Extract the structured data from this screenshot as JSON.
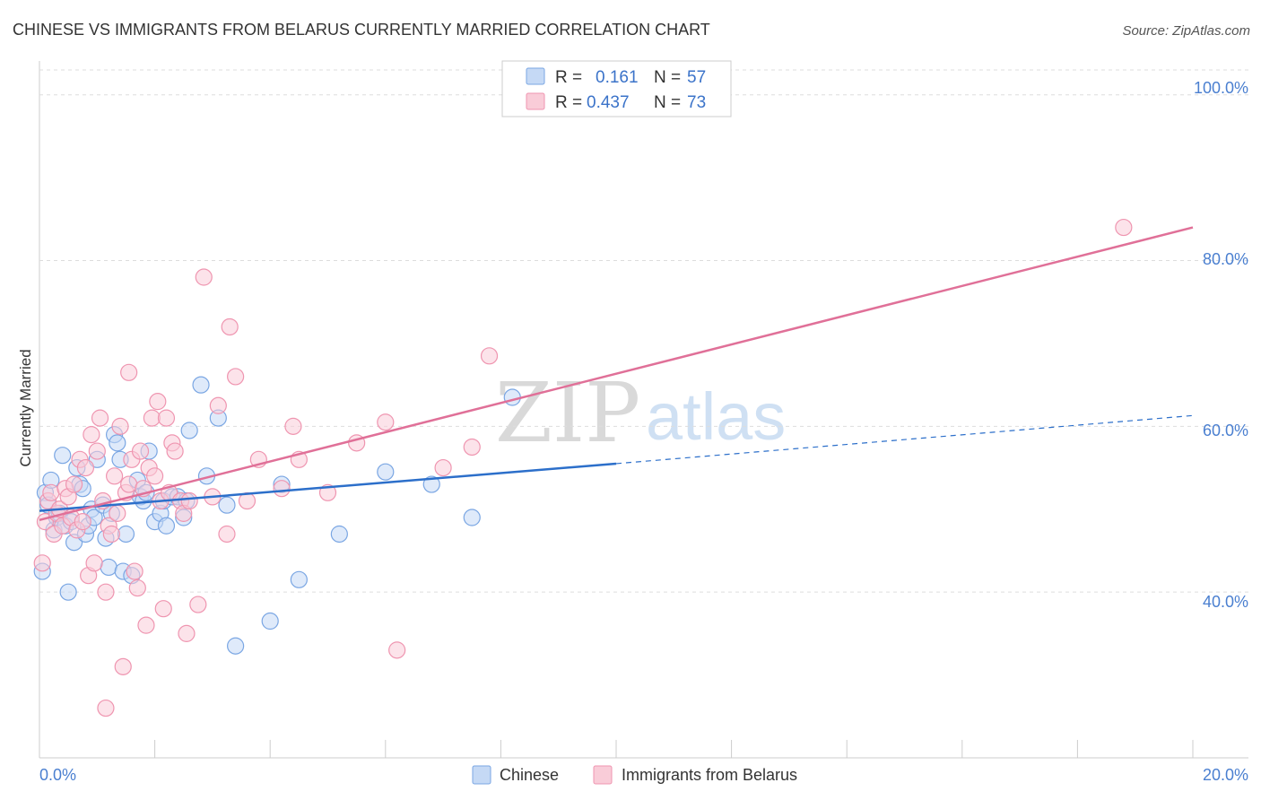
{
  "title": "CHINESE VS IMMIGRANTS FROM BELARUS CURRENTLY MARRIED CORRELATION CHART",
  "source": "Source: ZipAtlas.com",
  "watermark": {
    "part1": "ZIP",
    "part2": "atlas"
  },
  "legend": {
    "r_label": "R =",
    "n_label": "N =",
    "series": [
      {
        "r": "0.161",
        "n": "57"
      },
      {
        "r": "0.437",
        "n": "73"
      }
    ]
  },
  "bottom_legend": [
    "Chinese",
    "Immigrants from Belarus"
  ],
  "colors": {
    "blue_fill": "#c5d9f5",
    "blue_stroke": "#7aa6e3",
    "blue_line": "#2c6fca",
    "pink_fill": "#f9ccd8",
    "pink_stroke": "#ef95b0",
    "pink_line": "#e07098",
    "grid": "#dddddd",
    "axis": "#cccccc"
  },
  "chart_data": {
    "type": "scatter",
    "title": "CHINESE VS IMMIGRANTS FROM BELARUS CURRENTLY MARRIED CORRELATION CHART",
    "xlabel": "",
    "ylabel": "Currently Married",
    "xlim": [
      0,
      20
    ],
    "ylim": [
      20,
      103
    ],
    "x_tick_labels": [
      "0.0%",
      "20.0%"
    ],
    "y_ticks": [
      40,
      60,
      80,
      100
    ],
    "y_tick_labels": [
      "40.0%",
      "60.0%",
      "80.0%",
      "100.0%"
    ],
    "grid": true,
    "series": [
      {
        "name": "Chinese",
        "trend": {
          "x0": 0,
          "y0": 49.8,
          "x1": 10,
          "y1": 55.5,
          "dash_to_x": 20,
          "dash_to_y": 61.3
        },
        "points": [
          [
            0.05,
            42.5
          ],
          [
            0.1,
            52.0
          ],
          [
            0.15,
            50.5
          ],
          [
            0.2,
            53.5
          ],
          [
            0.25,
            47.5
          ],
          [
            0.3,
            49.0
          ],
          [
            0.35,
            49.5
          ],
          [
            0.4,
            56.5
          ],
          [
            0.45,
            48.0
          ],
          [
            0.5,
            40.0
          ],
          [
            0.55,
            48.5
          ],
          [
            0.6,
            46.0
          ],
          [
            0.65,
            55.0
          ],
          [
            0.7,
            53.0
          ],
          [
            0.75,
            52.5
          ],
          [
            0.8,
            47.0
          ],
          [
            0.85,
            48.0
          ],
          [
            0.9,
            50.0
          ],
          [
            0.95,
            49.0
          ],
          [
            1.0,
            56.0
          ],
          [
            1.1,
            50.5
          ],
          [
            1.15,
            46.5
          ],
          [
            1.2,
            43.0
          ],
          [
            1.25,
            49.5
          ],
          [
            1.3,
            59.0
          ],
          [
            1.35,
            58.0
          ],
          [
            1.4,
            56.0
          ],
          [
            1.45,
            42.5
          ],
          [
            1.5,
            47.0
          ],
          [
            1.6,
            42.0
          ],
          [
            1.7,
            53.5
          ],
          [
            1.75,
            51.5
          ],
          [
            1.8,
            51.0
          ],
          [
            1.85,
            52.0
          ],
          [
            1.9,
            57.0
          ],
          [
            2.0,
            48.5
          ],
          [
            2.1,
            49.5
          ],
          [
            2.15,
            51.0
          ],
          [
            2.2,
            48.0
          ],
          [
            2.3,
            51.5
          ],
          [
            2.4,
            51.5
          ],
          [
            2.5,
            49.0
          ],
          [
            2.55,
            51.0
          ],
          [
            2.6,
            59.5
          ],
          [
            2.8,
            65.0
          ],
          [
            2.9,
            54.0
          ],
          [
            3.1,
            61.0
          ],
          [
            3.25,
            50.5
          ],
          [
            3.4,
            33.5
          ],
          [
            4.0,
            36.5
          ],
          [
            4.2,
            53.0
          ],
          [
            4.5,
            41.5
          ],
          [
            5.2,
            47.0
          ],
          [
            6.0,
            54.5
          ],
          [
            6.8,
            53.0
          ],
          [
            7.5,
            49.0
          ],
          [
            8.2,
            63.5
          ]
        ]
      },
      {
        "name": "Immigrants from Belarus",
        "trend": {
          "x0": 0,
          "y0": 48.7,
          "x1": 20,
          "y1": 84.0
        },
        "points": [
          [
            0.05,
            43.5
          ],
          [
            0.1,
            48.5
          ],
          [
            0.15,
            51.0
          ],
          [
            0.2,
            52.0
          ],
          [
            0.25,
            47.0
          ],
          [
            0.3,
            49.5
          ],
          [
            0.35,
            50.0
          ],
          [
            0.4,
            48.0
          ],
          [
            0.45,
            52.5
          ],
          [
            0.5,
            51.5
          ],
          [
            0.55,
            49.0
          ],
          [
            0.6,
            53.0
          ],
          [
            0.65,
            47.5
          ],
          [
            0.7,
            56.0
          ],
          [
            0.75,
            48.5
          ],
          [
            0.8,
            55.0
          ],
          [
            0.85,
            42.0
          ],
          [
            0.9,
            59.0
          ],
          [
            0.95,
            43.5
          ],
          [
            1.0,
            57.0
          ],
          [
            1.05,
            61.0
          ],
          [
            1.1,
            51.0
          ],
          [
            1.15,
            40.0
          ],
          [
            1.2,
            48.0
          ],
          [
            1.25,
            47.0
          ],
          [
            1.3,
            54.0
          ],
          [
            1.35,
            49.5
          ],
          [
            1.4,
            60.0
          ],
          [
            1.45,
            31.0
          ],
          [
            1.5,
            52.0
          ],
          [
            1.55,
            53.0
          ],
          [
            1.6,
            56.0
          ],
          [
            1.65,
            42.5
          ],
          [
            1.7,
            40.5
          ],
          [
            1.75,
            57.0
          ],
          [
            1.8,
            52.5
          ],
          [
            1.85,
            36.0
          ],
          [
            1.9,
            55.0
          ],
          [
            1.95,
            61.0
          ],
          [
            2.0,
            54.0
          ],
          [
            2.05,
            63.0
          ],
          [
            2.1,
            51.0
          ],
          [
            2.15,
            38.0
          ],
          [
            2.2,
            61.0
          ],
          [
            2.25,
            52.0
          ],
          [
            2.3,
            58.0
          ],
          [
            2.35,
            57.0
          ],
          [
            2.45,
            51.0
          ],
          [
            2.5,
            49.5
          ],
          [
            2.55,
            35.0
          ],
          [
            2.6,
            51.0
          ],
          [
            2.75,
            38.5
          ],
          [
            2.85,
            78.0
          ],
          [
            3.0,
            51.5
          ],
          [
            3.1,
            62.5
          ],
          [
            3.25,
            47.0
          ],
          [
            3.4,
            66.0
          ],
          [
            3.6,
            51.0
          ],
          [
            3.8,
            56.0
          ],
          [
            4.2,
            52.5
          ],
          [
            4.4,
            60.0
          ],
          [
            4.5,
            56.0
          ],
          [
            5.0,
            52.0
          ],
          [
            5.5,
            58.0
          ],
          [
            6.0,
            60.5
          ],
          [
            6.2,
            33.0
          ],
          [
            7.0,
            55.0
          ],
          [
            7.5,
            57.5
          ],
          [
            7.8,
            68.5
          ],
          [
            3.3,
            72.0
          ],
          [
            1.55,
            66.5
          ],
          [
            1.15,
            26.0
          ],
          [
            18.8,
            84.0
          ]
        ]
      }
    ]
  }
}
